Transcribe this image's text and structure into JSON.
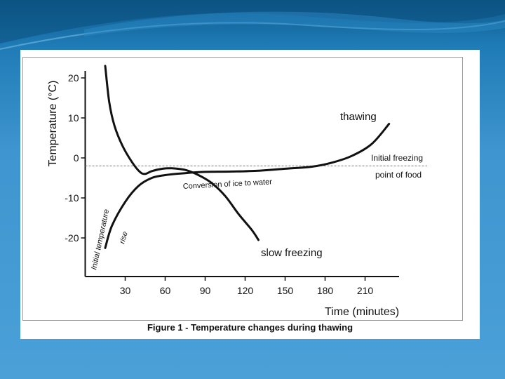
{
  "slide": {
    "colors": {
      "bg_dark": "#0d5a8c",
      "bg_light": "#4aa0d7",
      "wave": "#7fc3ea"
    }
  },
  "chart_data": {
    "type": "line",
    "caption": "Figure 1 - Temperature changes during thawing",
    "xlabel": "Time (minutes)",
    "ylabel": "Temperature (°C)",
    "xlim": [
      0,
      240
    ],
    "ylim": [
      -28,
      22
    ],
    "x_ticks": [
      30,
      60,
      90,
      120,
      150,
      180,
      210
    ],
    "y_ticks": [
      20,
      10,
      0,
      -10,
      -20
    ],
    "reference_line": {
      "y": -2,
      "style": "dashed",
      "label_line1": "Initial freezing",
      "label_line2": "point of food"
    },
    "series": [
      {
        "name": "thawing",
        "points": [
          [
            15,
            -22.5
          ],
          [
            20,
            -17
          ],
          [
            30,
            -11
          ],
          [
            40,
            -7
          ],
          [
            50,
            -5
          ],
          [
            60,
            -4.3
          ],
          [
            75,
            -3.8
          ],
          [
            90,
            -3.5
          ],
          [
            110,
            -3.4
          ],
          [
            130,
            -3.2
          ],
          [
            150,
            -2.7
          ],
          [
            170,
            -2.2
          ],
          [
            185,
            -1.2
          ],
          [
            200,
            0.5
          ],
          [
            215,
            3.5
          ],
          [
            228,
            8.5
          ]
        ]
      },
      {
        "name": "slow freezing",
        "points": [
          [
            15,
            23
          ],
          [
            18,
            14
          ],
          [
            22,
            8
          ],
          [
            28,
            3
          ],
          [
            35,
            -1
          ],
          [
            41,
            -3.5
          ],
          [
            45,
            -4
          ],
          [
            50,
            -3.3
          ],
          [
            58,
            -2.7
          ],
          [
            65,
            -2.6
          ],
          [
            75,
            -3
          ],
          [
            85,
            -4.3
          ],
          [
            95,
            -6.3
          ],
          [
            105,
            -9.5
          ],
          [
            115,
            -14
          ],
          [
            125,
            -18
          ],
          [
            130,
            -20.5
          ]
        ]
      }
    ],
    "annotations": {
      "thawing": "thawing",
      "slow_freezing": "slow freezing",
      "conversion": "Conversion of ice to water",
      "initial_rise_line1": "Initial temperature",
      "initial_rise_line2": "rise"
    }
  }
}
